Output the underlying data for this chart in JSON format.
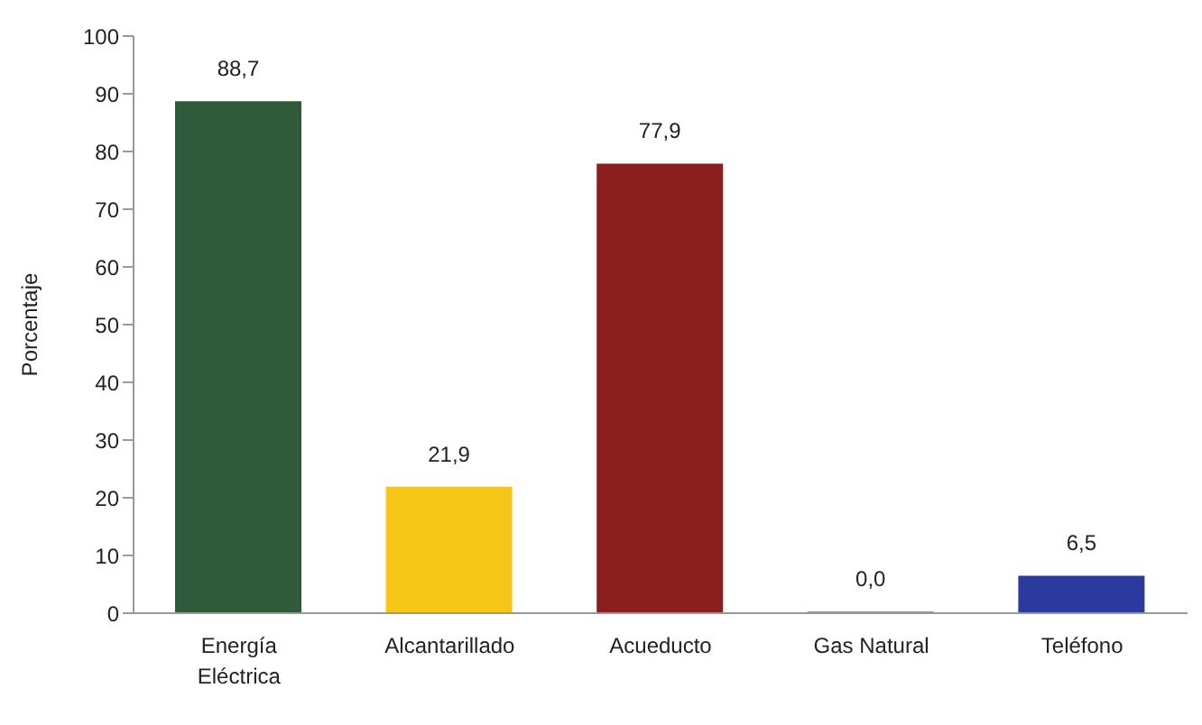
{
  "chart_data": {
    "type": "bar",
    "ylabel": "Porcentaje",
    "categories": [
      "Energía Eléctrica",
      "Alcantarillado",
      "Acueducto",
      "Gas Natural",
      "Teléfono"
    ],
    "values": [
      88.7,
      21.9,
      77.9,
      0.0,
      6.5
    ],
    "colors": [
      "#2f5a3a",
      "#f5c518",
      "#8b1f1f",
      "#9a9a9a",
      "#2b3a9e"
    ],
    "value_labels": [
      "88,7",
      "21,9",
      "77,9",
      "0,0",
      "6,5"
    ],
    "ylim": [
      0,
      100
    ],
    "yticks": [
      0,
      10,
      20,
      30,
      40,
      50,
      60,
      70,
      80,
      90,
      100
    ],
    "grid": false,
    "legend": false
  }
}
